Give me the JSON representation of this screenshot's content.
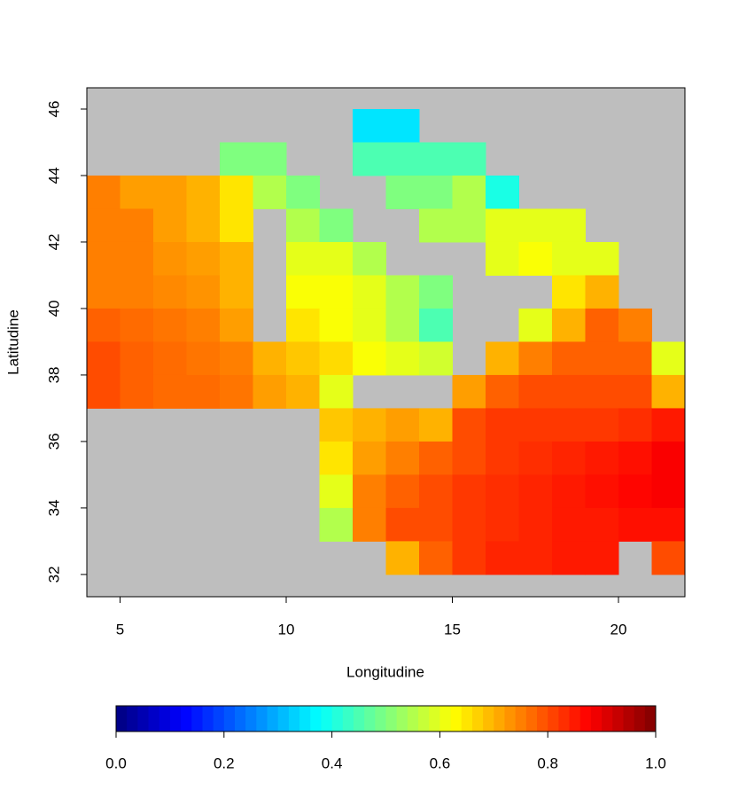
{
  "chart_data": {
    "type": "heatmap",
    "xlabel": "Longitudine",
    "ylabel": "Latitudine",
    "xlim": [
      4,
      22
    ],
    "ylim": [
      31.33,
      46.64
    ],
    "xticks": [
      5,
      10,
      15,
      20
    ],
    "yticks": [
      32,
      34,
      36,
      38,
      40,
      42,
      44,
      46
    ],
    "x": [
      4.5,
      5.5,
      6.5,
      7.5,
      8.5,
      9.5,
      10.5,
      11.5,
      12.5,
      13.5,
      14.5,
      15.5,
      16.5,
      17.5,
      18.5,
      19.5,
      20.5,
      21.5
    ],
    "y": [
      45.5,
      44.5,
      43.5,
      42.5,
      41.5,
      40.5,
      39.5,
      38.5,
      37.5,
      36.5,
      35.5,
      34.5,
      33.5,
      32.5
    ],
    "values": [
      [
        null,
        null,
        null,
        null,
        null,
        null,
        null,
        null,
        0.35,
        0.35,
        null,
        null,
        null,
        null,
        null,
        null,
        null,
        null
      ],
      [
        null,
        null,
        null,
        null,
        0.5,
        0.5,
        null,
        null,
        0.45,
        0.45,
        0.45,
        0.45,
        null,
        null,
        null,
        null,
        null,
        null
      ],
      [
        0.75,
        0.72,
        0.72,
        0.7,
        0.65,
        0.55,
        0.5,
        null,
        null,
        0.5,
        0.5,
        0.55,
        0.4,
        null,
        null,
        null,
        null,
        null
      ],
      [
        0.75,
        0.75,
        0.72,
        0.7,
        0.65,
        null,
        0.55,
        0.5,
        null,
        null,
        0.55,
        0.55,
        0.6,
        0.6,
        0.6,
        null,
        null,
        null
      ],
      [
        0.75,
        0.75,
        0.73,
        0.72,
        0.7,
        null,
        0.6,
        0.6,
        0.55,
        null,
        null,
        null,
        0.6,
        0.62,
        0.6,
        0.6,
        null,
        null
      ],
      [
        0.75,
        0.75,
        0.74,
        0.73,
        0.7,
        null,
        0.62,
        0.62,
        0.6,
        0.55,
        0.5,
        null,
        null,
        null,
        0.65,
        0.7,
        null,
        null
      ],
      [
        0.78,
        0.77,
        0.76,
        0.75,
        0.72,
        null,
        0.65,
        0.62,
        0.6,
        0.55,
        0.45,
        null,
        null,
        0.6,
        0.7,
        0.78,
        0.75,
        null
      ],
      [
        0.8,
        0.78,
        0.77,
        0.76,
        0.75,
        0.7,
        0.68,
        0.66,
        0.62,
        0.6,
        0.58,
        null,
        0.7,
        0.75,
        0.78,
        0.78,
        0.78,
        0.6
      ],
      [
        0.8,
        0.78,
        0.77,
        0.77,
        0.76,
        0.72,
        0.7,
        0.6,
        null,
        null,
        null,
        0.72,
        0.78,
        0.8,
        0.8,
        0.8,
        0.8,
        0.7
      ],
      [
        null,
        null,
        null,
        null,
        null,
        null,
        null,
        0.68,
        0.7,
        0.72,
        0.7,
        0.8,
        0.82,
        0.82,
        0.82,
        0.82,
        0.83,
        0.85
      ],
      [
        null,
        null,
        null,
        null,
        null,
        null,
        null,
        0.65,
        0.72,
        0.75,
        0.78,
        0.8,
        0.82,
        0.83,
        0.84,
        0.85,
        0.86,
        0.88
      ],
      [
        null,
        null,
        null,
        null,
        null,
        null,
        null,
        0.6,
        0.75,
        0.78,
        0.8,
        0.82,
        0.83,
        0.84,
        0.85,
        0.86,
        0.87,
        0.88
      ],
      [
        null,
        null,
        null,
        null,
        null,
        null,
        null,
        0.55,
        0.75,
        0.8,
        0.8,
        0.82,
        0.83,
        0.84,
        0.85,
        0.85,
        0.86,
        0.86
      ],
      [
        null,
        null,
        null,
        null,
        null,
        null,
        null,
        null,
        null,
        0.7,
        0.78,
        0.82,
        0.84,
        0.84,
        0.85,
        0.85,
        null,
        0.8
      ]
    ],
    "na_color": "#bebebe",
    "colorbar": {
      "lim": [
        0,
        1
      ],
      "steps": 50,
      "colors": [
        "#00007f",
        "#0000ff",
        "#007fff",
        "#00ffff",
        "#7fff7f",
        "#ffff00",
        "#ff7f00",
        "#ff0000",
        "#7f0000"
      ],
      "ticks": [
        {
          "value": 0,
          "label": "0.0"
        },
        {
          "value": 0.2,
          "label": "0.2"
        },
        {
          "value": 0.4,
          "label": "0.4"
        },
        {
          "value": 0.6,
          "label": "0.6"
        },
        {
          "value": 0.8,
          "label": "0.8"
        },
        {
          "value": 1,
          "label": "1.0"
        }
      ]
    }
  }
}
